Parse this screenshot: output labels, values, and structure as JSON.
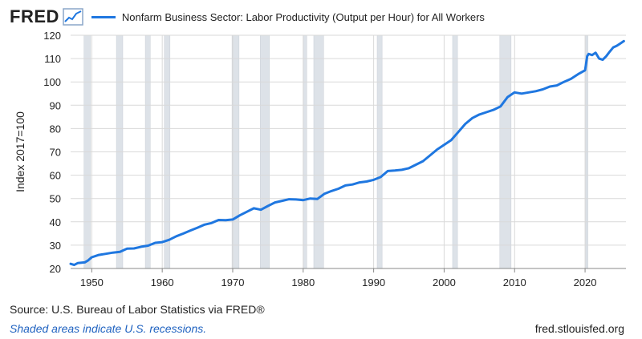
{
  "header": {
    "logo": "FRED",
    "logo_icon": "chart-line-icon",
    "series_title": "Nonfarm Business Sector: Labor Productivity (Output per Hour) for All Workers"
  },
  "footer": {
    "source_label": "Source: U.S. Bureau of Labor Statistics",
    "via": " via FRED®",
    "note": "Shaded areas indicate U.S. recessions.",
    "url": "fred.stlouisfed.org"
  },
  "colors": {
    "line": "#1f77e0",
    "recession": "#dde2e8",
    "grid": "#d9d9d9"
  },
  "chart_data": {
    "type": "line",
    "title": "Nonfarm Business Sector: Labor Productivity (Output per Hour) for All Workers",
    "ylabel": "Index 2017=100",
    "xlabel": "",
    "xlim": [
      1947.0,
      2025.8
    ],
    "ylim": [
      20,
      120
    ],
    "x_ticks": [
      1950,
      1960,
      1970,
      1980,
      1990,
      2000,
      2010,
      2020
    ],
    "y_ticks": [
      20,
      30,
      40,
      50,
      60,
      70,
      80,
      90,
      100,
      110,
      120
    ],
    "grid": true,
    "recessions": [
      [
        1948.9,
        1949.8
      ],
      [
        1953.5,
        1954.4
      ],
      [
        1957.6,
        1958.3
      ],
      [
        1960.3,
        1961.1
      ],
      [
        1969.9,
        1970.9
      ],
      [
        1973.9,
        1975.2
      ],
      [
        1980.0,
        1980.5
      ],
      [
        1981.5,
        1982.9
      ],
      [
        1990.5,
        1991.2
      ],
      [
        2001.2,
        2001.9
      ],
      [
        2007.9,
        2009.5
      ],
      [
        2020.1,
        2020.4
      ]
    ],
    "series": [
      {
        "x": [
          1947.0,
          1947.5,
          1948.0,
          1949.0,
          1949.5,
          1950.0,
          1950.5,
          1951.0,
          1952.0,
          1953.0,
          1954.0,
          1955.0,
          1956.0,
          1957.0,
          1958.0,
          1959.0,
          1960.0,
          1961.0,
          1962.0,
          1963.0,
          1964.0,
          1965.0,
          1966.0,
          1967.0,
          1968.0,
          1969.0,
          1970.0,
          1971.0,
          1972.0,
          1973.0,
          1974.0,
          1975.0,
          1976.0,
          1977.0,
          1978.0,
          1979.0,
          1980.0,
          1981.0,
          1982.0,
          1983.0,
          1984.0,
          1985.0,
          1986.0,
          1987.0,
          1988.0,
          1989.0,
          1990.0,
          1991.0,
          1992.0,
          1993.0,
          1994.0,
          1995.0,
          1996.0,
          1997.0,
          1998.0,
          1999.0,
          2000.0,
          2001.0,
          2002.0,
          2003.0,
          2004.0,
          2005.0,
          2006.0,
          2007.0,
          2008.0,
          2009.0,
          2010.0,
          2011.0,
          2012.0,
          2013.0,
          2014.0,
          2015.0,
          2016.0,
          2017.0,
          2018.0,
          2019.0,
          2020.0,
          2020.3,
          2020.5,
          2021.0,
          2021.5,
          2022.0,
          2022.5,
          2023.0,
          2023.5,
          2024.0,
          2024.5,
          2025.0,
          2025.5
        ],
        "y": [
          22,
          21.5,
          22.3,
          22.6,
          23.5,
          24.8,
          25.3,
          25.8,
          26.3,
          26.8,
          27.1,
          28.5,
          28.6,
          29.3,
          29.8,
          31.0,
          31.3,
          32.3,
          33.8,
          35.0,
          36.3,
          37.5,
          38.8,
          39.5,
          40.8,
          40.7,
          41.0,
          42.8,
          44.3,
          45.8,
          45.2,
          46.8,
          48.3,
          49.0,
          49.7,
          49.6,
          49.3,
          50.0,
          49.8,
          52.0,
          53.2,
          54.2,
          55.6,
          56.0,
          56.9,
          57.3,
          58.0,
          59.2,
          61.8,
          62.0,
          62.3,
          63.0,
          64.5,
          66.0,
          68.5,
          71.0,
          73.0,
          75.0,
          78.5,
          82.0,
          84.5,
          86.0,
          87.0,
          88.0,
          89.5,
          93.5,
          95.5,
          95.0,
          95.5,
          96.0,
          96.8,
          98.0,
          98.5,
          100.0,
          101.3,
          103.3,
          105.0,
          111.0,
          112.0,
          111.5,
          112.5,
          110.0,
          109.5,
          111.0,
          113.0,
          114.8,
          115.5,
          116.5,
          117.5
        ]
      }
    ]
  }
}
